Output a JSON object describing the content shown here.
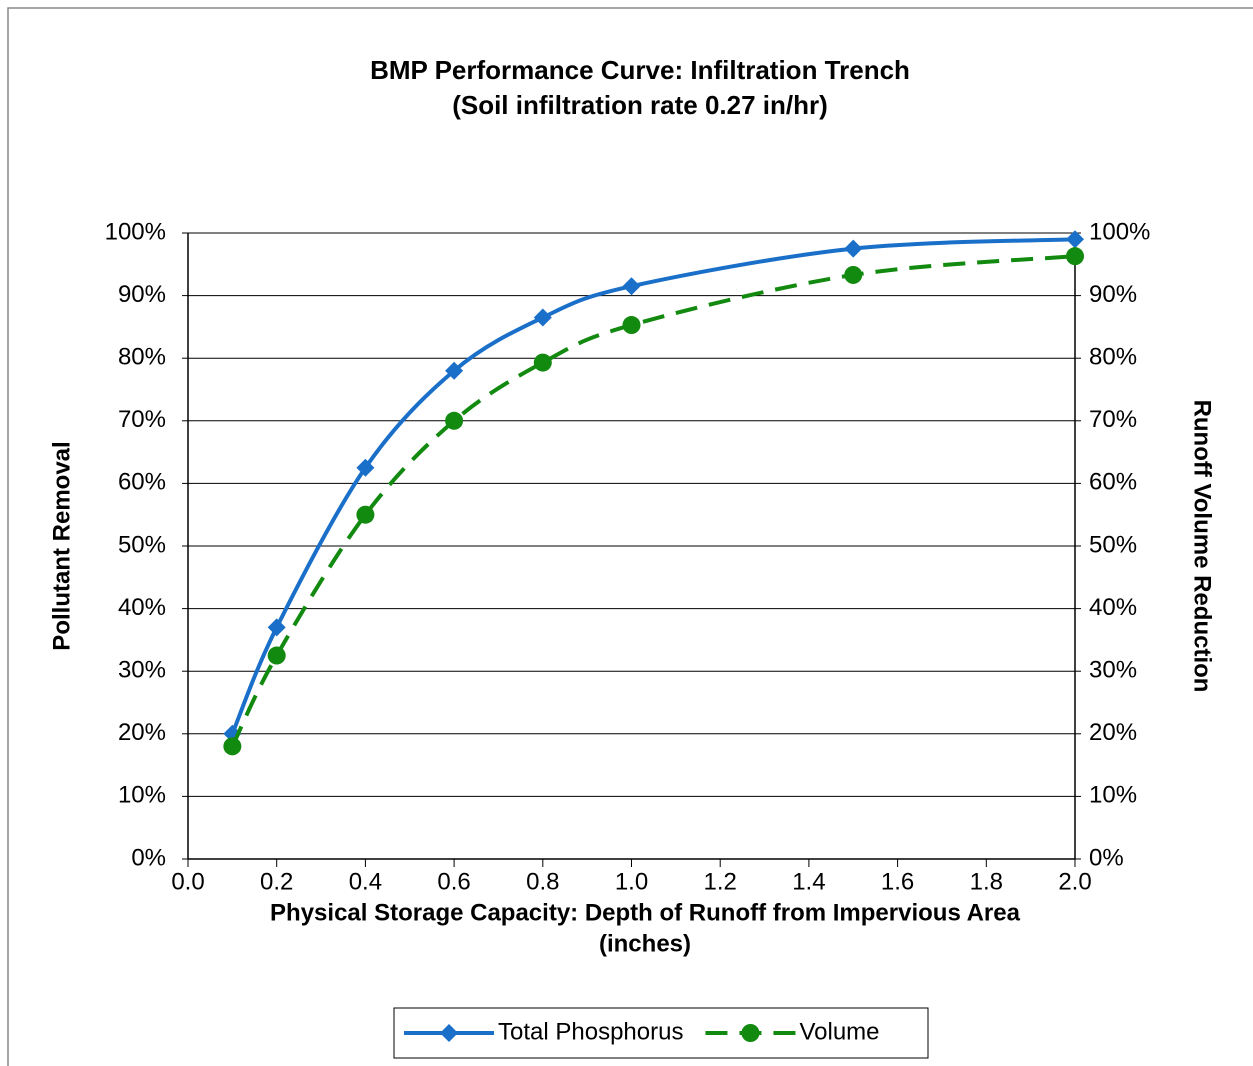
{
  "chart_data": {
    "type": "line",
    "title": "BMP Performance Curve: Infiltration Trench",
    "subtitle": "(Soil infiltration rate 0.27 in/hr)",
    "xlabel": [
      "Physical Storage Capacity: Depth of Runoff from Impervious Area",
      "(inches)"
    ],
    "ylabel": "Pollutant Removal",
    "y2label": "Runoff Volume Reduction",
    "x": [
      0.1,
      0.2,
      0.4,
      0.6,
      0.8,
      1.0,
      1.5,
      2.0
    ],
    "series": [
      {
        "name": "Total Phosphorus",
        "color": "#1a6fc9",
        "marker": "diamond",
        "dash": false,
        "values": [
          20,
          37,
          62.5,
          78,
          86.5,
          91.5,
          97.5,
          99
        ]
      },
      {
        "name": "Volume",
        "color": "#12890f",
        "marker": "circle",
        "dash": true,
        "axis": "y2",
        "values": [
          18,
          32.5,
          55,
          70,
          79.3,
          85.3,
          93.3,
          96.3
        ]
      }
    ],
    "xlim": [
      0,
      2
    ],
    "xticks": [
      {
        "value": 0,
        "label": "0.0"
      },
      0.2,
      0.4,
      0.6,
      0.8,
      {
        "value": 1,
        "label": "1.0"
      },
      1.2,
      1.4,
      1.6,
      1.8,
      {
        "value": 2,
        "label": "2.0"
      }
    ],
    "ylim": [
      0,
      100
    ],
    "yticks": [
      {
        "value": 0,
        "label": "0%"
      },
      {
        "value": 10,
        "label": "10%"
      },
      {
        "value": 20,
        "label": "20%"
      },
      {
        "value": 30,
        "label": "30%"
      },
      {
        "value": 40,
        "label": "40%"
      },
      {
        "value": 50,
        "label": "50%"
      },
      {
        "value": 60,
        "label": "60%"
      },
      {
        "value": 70,
        "label": "70%"
      },
      {
        "value": 80,
        "label": "80%"
      },
      {
        "value": 90,
        "label": "90%"
      },
      {
        "value": 100,
        "label": "100%"
      }
    ],
    "y2lim": [
      0,
      100
    ],
    "y2ticks": [
      {
        "value": 0,
        "label": "0%"
      },
      {
        "value": 10,
        "label": "10%"
      },
      {
        "value": 20,
        "label": "20%"
      },
      {
        "value": 30,
        "label": "30%"
      },
      {
        "value": 40,
        "label": "40%"
      },
      {
        "value": 50,
        "label": "50%"
      },
      {
        "value": 60,
        "label": "60%"
      },
      {
        "value": 70,
        "label": "70%"
      },
      {
        "value": 80,
        "label": "80%"
      },
      {
        "value": 90,
        "label": "90%"
      },
      {
        "value": 100,
        "label": "100%"
      }
    ],
    "grid": true,
    "legend": "bottom"
  }
}
